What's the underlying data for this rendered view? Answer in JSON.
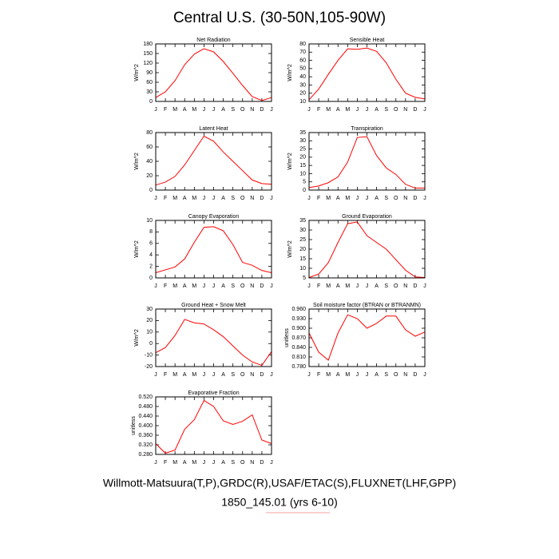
{
  "title": "Central U.S. (30-50N,105-90W)",
  "footer": [
    "Willmott-Matsuura(T,P),GRDC(R),USAF/ETAC(S),FLUXNET(LHF,GPP)",
    "1850_145.01 (yrs 6-10)"
  ],
  "chart_data": [
    {
      "type": "line",
      "title": "Net Radiation",
      "ylabel": "W/m^2",
      "categories": [
        "J",
        "F",
        "M",
        "A",
        "M",
        "J",
        "J",
        "A",
        "S",
        "O",
        "N",
        "D",
        "J"
      ],
      "values": [
        12,
        30,
        65,
        115,
        148,
        165,
        155,
        125,
        88,
        50,
        15,
        3,
        12
      ],
      "color": "#ff0000",
      "ylim": [
        0,
        180
      ],
      "yticks": [
        0,
        30,
        60,
        90,
        120,
        150,
        180
      ]
    },
    {
      "type": "line",
      "title": "Sensible Heat",
      "ylabel": "W/m^2",
      "categories": [
        "J",
        "F",
        "M",
        "A",
        "M",
        "J",
        "J",
        "A",
        "S",
        "O",
        "N",
        "D",
        "J"
      ],
      "values": [
        12,
        25,
        43,
        60,
        74,
        73.5,
        75,
        71,
        57,
        37,
        20,
        15,
        13
      ],
      "color": "#ff0000",
      "ylim": [
        10,
        80
      ],
      "yticks": [
        10,
        20,
        30,
        40,
        50,
        60,
        70,
        80
      ]
    },
    {
      "type": "line",
      "title": "Latent Heat",
      "ylabel": "W/m^2",
      "categories": [
        "J",
        "F",
        "M",
        "A",
        "M",
        "J",
        "J",
        "A",
        "S",
        "O",
        "N",
        "D",
        "J"
      ],
      "values": [
        7,
        11,
        19,
        35,
        55,
        75,
        68,
        53,
        40,
        27,
        14,
        9,
        8
      ],
      "color": "#ff0000",
      "ylim": [
        0,
        80
      ],
      "yticks": [
        0,
        20,
        40,
        60,
        80
      ]
    },
    {
      "type": "line",
      "title": "Transpiration",
      "ylabel": "W/m^2",
      "categories": [
        "J",
        "F",
        "M",
        "A",
        "M",
        "J",
        "J",
        "A",
        "S",
        "O",
        "N",
        "D",
        "J"
      ],
      "values": [
        1.5,
        2.5,
        4.5,
        8,
        17,
        32,
        32.5,
        21,
        13.5,
        9.5,
        3.5,
        1.2,
        1.2
      ],
      "color": "#ff0000",
      "ylim": [
        0,
        35
      ],
      "yticks": [
        0,
        5,
        10,
        15,
        20,
        25,
        30,
        35
      ]
    },
    {
      "type": "line",
      "title": "Canopy Evaporation",
      "ylabel": "W/m^2",
      "categories": [
        "J",
        "F",
        "M",
        "A",
        "M",
        "J",
        "J",
        "A",
        "S",
        "O",
        "N",
        "D",
        "J"
      ],
      "values": [
        0.9,
        1.4,
        1.9,
        3.3,
        6.2,
        8.8,
        8.9,
        8.2,
        5.8,
        2.7,
        2.2,
        1.3,
        0.9
      ],
      "color": "#ff0000",
      "ylim": [
        0,
        10
      ],
      "yticks": [
        0,
        2,
        4,
        6,
        8,
        10
      ]
    },
    {
      "type": "line",
      "title": "Ground Evaporation",
      "ylabel": "W/m^2",
      "categories": [
        "J",
        "F",
        "M",
        "A",
        "M",
        "J",
        "J",
        "A",
        "S",
        "O",
        "N",
        "D",
        "J"
      ],
      "values": [
        5.2,
        7,
        13,
        23.5,
        33.3,
        34.2,
        27,
        23.5,
        20,
        14.5,
        9,
        5.5,
        5.2
      ],
      "color": "#ff0000",
      "ylim": [
        5,
        35
      ],
      "yticks": [
        5,
        10,
        15,
        20,
        25,
        30,
        35
      ]
    },
    {
      "type": "line",
      "title": "Ground Heat + Snow Melt",
      "ylabel": "W/m^2",
      "categories": [
        "J",
        "F",
        "M",
        "A",
        "M",
        "J",
        "J",
        "A",
        "S",
        "O",
        "N",
        "D",
        "J"
      ],
      "values": [
        -8,
        -3.5,
        7,
        21,
        18,
        17,
        12,
        6,
        -2,
        -10,
        -16,
        -19,
        -7
      ],
      "color": "#ff0000",
      "ylim": [
        -20,
        30
      ],
      "yticks": [
        -20,
        -10,
        0,
        10,
        20,
        30
      ]
    },
    {
      "type": "line",
      "title": "Soil moisture factor (BTRAN or BTRANMN)",
      "ylabel": "unitless",
      "categories": [
        "J",
        "F",
        "M",
        "A",
        "M",
        "J",
        "J",
        "A",
        "S",
        "O",
        "N",
        "D",
        "J"
      ],
      "values": [
        0.885,
        0.825,
        0.8,
        0.885,
        0.942,
        0.93,
        0.9,
        0.915,
        0.938,
        0.938,
        0.895,
        0.875,
        0.888
      ],
      "color": "#ff0000",
      "ylim": [
        0.78,
        0.96
      ],
      "yticks": [
        {
          "value": 0.78,
          "label": "0.780"
        },
        {
          "value": 0.81,
          "label": "0.810"
        },
        {
          "value": 0.84,
          "label": "0.840"
        },
        {
          "value": 0.87,
          "label": "0.870"
        },
        {
          "value": 0.9,
          "label": "0.900"
        },
        {
          "value": 0.93,
          "label": "0.930"
        },
        {
          "value": 0.96,
          "label": "0.960"
        }
      ]
    },
    {
      "type": "line",
      "title": "Evaporative Fraction",
      "ylabel": "unitless",
      "categories": [
        "J",
        "F",
        "M",
        "A",
        "M",
        "J",
        "J",
        "A",
        "S",
        "O",
        "N",
        "D",
        "J"
      ],
      "values": [
        0.325,
        0.285,
        0.298,
        0.385,
        0.425,
        0.505,
        0.48,
        0.42,
        0.405,
        0.418,
        0.445,
        0.34,
        0.325
      ],
      "color": "#ff0000",
      "ylim": [
        0.28,
        0.52
      ],
      "yticks": [
        {
          "value": 0.28,
          "label": "0.280"
        },
        {
          "value": 0.32,
          "label": "0.320"
        },
        {
          "value": 0.36,
          "label": "0.360"
        },
        {
          "value": 0.4,
          "label": "0.400"
        },
        {
          "value": 0.44,
          "label": "0.440"
        },
        {
          "value": 0.48,
          "label": "0.480"
        },
        {
          "value": 0.52,
          "label": "0.520"
        }
      ]
    }
  ]
}
